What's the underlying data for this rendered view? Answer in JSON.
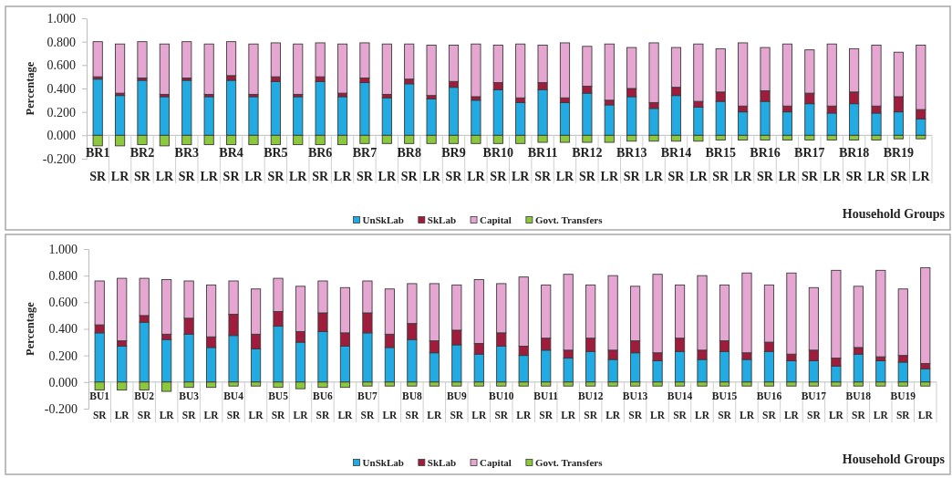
{
  "chart_data": [
    {
      "type": "bar",
      "stacked": true,
      "ylabel": "Percentage",
      "xlabel": "Household Groups",
      "legend": "bottom",
      "categories": [
        "BR1\nSR",
        "LR",
        "BR2\nSR",
        "LR",
        "BR3\nSR",
        "LR",
        "BR4\nSR",
        "LR",
        "BR5\nSR",
        "LR",
        "BR6\nSR",
        "LR",
        "BR7\nSR",
        "LR",
        "BR8\nSR",
        "LR",
        "BR9\nSR",
        "LR",
        "BR10\nSR",
        "LR",
        "BR11\nSR",
        "LR",
        "BR12\nSR",
        "LR",
        "BR13\nSR",
        "LR",
        "BR14\nSR",
        "LR",
        "BR15\nSR",
        "LR",
        "BR16\nSR",
        "LR",
        "BR17\nSR",
        "LR",
        "BR18\nSR",
        "LR",
        "BR19\nSR",
        "LR"
      ],
      "ylim": [
        -0.2,
        1.0
      ],
      "yticks": [
        {
          "value": -0.2,
          "label": "-0.200"
        },
        {
          "value": 0,
          "label": "0.000"
        },
        {
          "value": 0.2,
          "label": "0.200"
        },
        {
          "value": 0.4,
          "label": "0.400"
        },
        {
          "value": 0.6,
          "label": "0.600"
        },
        {
          "value": 0.8,
          "label": "0.800"
        },
        {
          "value": 1.0,
          "label": "1.000"
        }
      ],
      "series": [
        {
          "name": "UnSkLab",
          "color": "#22aae2",
          "values": [
            0.48,
            0.34,
            0.47,
            0.33,
            0.47,
            0.33,
            0.47,
            0.33,
            0.46,
            0.33,
            0.46,
            0.33,
            0.45,
            0.32,
            0.44,
            0.31,
            0.41,
            0.3,
            0.39,
            0.28,
            0.39,
            0.28,
            0.36,
            0.26,
            0.33,
            0.23,
            0.34,
            0.24,
            0.29,
            0.2,
            0.29,
            0.2,
            0.27,
            0.19,
            0.27,
            0.19,
            0.2,
            0.14
          ]
        },
        {
          "name": "SkLab",
          "color": "#a01c3c",
          "values": [
            0.02,
            0.02,
            0.02,
            0.02,
            0.02,
            0.02,
            0.04,
            0.02,
            0.04,
            0.02,
            0.04,
            0.03,
            0.04,
            0.03,
            0.04,
            0.03,
            0.05,
            0.03,
            0.06,
            0.04,
            0.06,
            0.04,
            0.06,
            0.04,
            0.07,
            0.05,
            0.07,
            0.05,
            0.08,
            0.05,
            0.09,
            0.05,
            0.09,
            0.06,
            0.1,
            0.06,
            0.13,
            0.08
          ]
        },
        {
          "name": "Capital",
          "color": "#e6a6d2",
          "values": [
            0.3,
            0.42,
            0.31,
            0.43,
            0.31,
            0.43,
            0.29,
            0.43,
            0.29,
            0.43,
            0.29,
            0.42,
            0.3,
            0.43,
            0.3,
            0.43,
            0.31,
            0.45,
            0.32,
            0.46,
            0.32,
            0.47,
            0.34,
            0.48,
            0.35,
            0.51,
            0.34,
            0.49,
            0.37,
            0.54,
            0.37,
            0.53,
            0.37,
            0.53,
            0.37,
            0.52,
            0.38,
            0.55
          ]
        },
        {
          "name": "Govt. Transfers",
          "color": "#8cc83c",
          "values": [
            -0.09,
            -0.09,
            -0.08,
            -0.09,
            -0.08,
            -0.08,
            -0.08,
            -0.08,
            -0.08,
            -0.08,
            -0.08,
            -0.08,
            -0.07,
            -0.07,
            -0.07,
            -0.07,
            -0.07,
            -0.07,
            -0.07,
            -0.07,
            -0.06,
            -0.06,
            -0.06,
            -0.06,
            -0.05,
            -0.05,
            -0.05,
            -0.05,
            -0.04,
            -0.04,
            -0.04,
            -0.04,
            -0.04,
            -0.04,
            -0.04,
            -0.04,
            -0.03,
            -0.03
          ]
        }
      ]
    },
    {
      "type": "bar",
      "stacked": true,
      "ylabel": "Percentage",
      "xlabel": "Household Groups",
      "legend": "bottom",
      "categories": [
        "BU1\nSR",
        "LR",
        "BU2\nSR",
        "LR",
        "BU3\nSR",
        "LR",
        "BU4\nSR",
        "LR",
        "BU5\nSR",
        "LR",
        "BU6\nSR",
        "LR",
        "BU7\nSR",
        "LR",
        "BU8\nSR",
        "LR",
        "BU9\nSR",
        "LR",
        "BU10\nSR",
        "LR",
        "BU11\nSR",
        "LR",
        "BU12\nSR",
        "LR",
        "BU13\nSR",
        "LR",
        "BU14\nSR",
        "LR",
        "BU15\nSR",
        "LR",
        "BU16\nSR",
        "LR",
        "BU17\nSR",
        "LR",
        "BU18\nSR",
        "LR",
        "BU19\nSR",
        "LR"
      ],
      "ylim": [
        -0.2,
        1.0
      ],
      "yticks": [
        {
          "value": -0.2,
          "label": "-0.200"
        },
        {
          "value": 0,
          "label": "0.000"
        },
        {
          "value": 0.2,
          "label": "0.200"
        },
        {
          "value": 0.4,
          "label": "0.400"
        },
        {
          "value": 0.6,
          "label": "0.600"
        },
        {
          "value": 0.8,
          "label": "0.800"
        },
        {
          "value": 1.0,
          "label": "1.000"
        }
      ],
      "series": [
        {
          "name": "UnSkLab",
          "color": "#22aae2",
          "values": [
            0.37,
            0.27,
            0.45,
            0.32,
            0.36,
            0.26,
            0.35,
            0.25,
            0.42,
            0.3,
            0.38,
            0.27,
            0.37,
            0.26,
            0.32,
            0.22,
            0.28,
            0.21,
            0.27,
            0.2,
            0.24,
            0.18,
            0.23,
            0.17,
            0.22,
            0.16,
            0.23,
            0.17,
            0.23,
            0.17,
            0.23,
            0.16,
            0.16,
            0.12,
            0.21,
            0.16,
            0.15,
            0.1
          ]
        },
        {
          "name": "SkLab",
          "color": "#a01c3c",
          "values": [
            0.06,
            0.04,
            0.05,
            0.04,
            0.12,
            0.08,
            0.16,
            0.11,
            0.11,
            0.08,
            0.14,
            0.1,
            0.15,
            0.1,
            0.12,
            0.09,
            0.11,
            0.08,
            0.1,
            0.07,
            0.09,
            0.06,
            0.1,
            0.07,
            0.09,
            0.06,
            0.1,
            0.07,
            0.08,
            0.05,
            0.07,
            0.05,
            0.08,
            0.06,
            0.05,
            0.03,
            0.05,
            0.04
          ]
        },
        {
          "name": "Capital",
          "color": "#e6a6d2",
          "values": [
            0.33,
            0.47,
            0.28,
            0.41,
            0.28,
            0.39,
            0.25,
            0.34,
            0.25,
            0.34,
            0.24,
            0.34,
            0.24,
            0.34,
            0.3,
            0.43,
            0.34,
            0.48,
            0.37,
            0.52,
            0.4,
            0.57,
            0.4,
            0.56,
            0.41,
            0.59,
            0.4,
            0.56,
            0.42,
            0.6,
            0.43,
            0.61,
            0.47,
            0.66,
            0.46,
            0.65,
            0.5,
            0.72
          ]
        },
        {
          "name": "Govt. Transfers",
          "color": "#8cc83c",
          "values": [
            -0.06,
            -0.06,
            -0.06,
            -0.07,
            -0.04,
            -0.04,
            -0.03,
            -0.03,
            -0.04,
            -0.05,
            -0.04,
            -0.04,
            -0.03,
            -0.03,
            -0.03,
            -0.03,
            -0.03,
            -0.03,
            -0.03,
            -0.03,
            -0.03,
            -0.03,
            -0.03,
            -0.03,
            -0.03,
            -0.03,
            -0.03,
            -0.03,
            -0.03,
            -0.03,
            -0.03,
            -0.03,
            -0.03,
            -0.03,
            -0.03,
            -0.03,
            -0.03,
            -0.03
          ]
        }
      ]
    }
  ]
}
